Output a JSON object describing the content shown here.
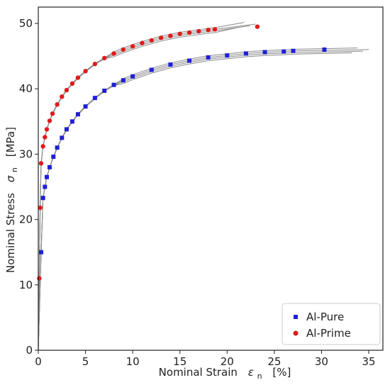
{
  "chart_data": {
    "type": "scatter",
    "title": "",
    "xlabel_text": "Nominal Strain",
    "xlabel_symbol": "ε",
    "xlabel_sub": "n",
    "xlabel_unit": "[%]",
    "ylabel_text": "Nominal Stress",
    "ylabel_symbol": "σ",
    "ylabel_sub": "n",
    "ylabel_unit": "[MPa]",
    "xlim": [
      0,
      36.5
    ],
    "ylim": [
      0,
      52.5
    ],
    "xticks": [
      0,
      5,
      10,
      15,
      20,
      25,
      30,
      35
    ],
    "yticks": [
      0,
      10,
      20,
      30,
      40,
      50
    ],
    "grid": false,
    "legend_position": "bottom-right",
    "series": [
      {
        "name": "Al-Pure",
        "marker": "square",
        "color": "#1f1fd6",
        "line_end": [
          35.0,
          46.0
        ],
        "x": [
          0.3,
          0.5,
          0.7,
          0.9,
          1.2,
          1.6,
          2.0,
          2.5,
          3.0,
          3.6,
          4.2,
          5.0,
          6.0,
          7.0,
          8.0,
          9.0,
          10.0,
          12.0,
          14.0,
          16.0,
          18.0,
          20.0,
          22.0,
          24.0,
          26.0,
          27.0,
          30.3
        ],
        "y": [
          15.0,
          23.3,
          25.0,
          26.5,
          28.0,
          29.6,
          31.0,
          32.5,
          33.8,
          35.0,
          36.1,
          37.3,
          38.6,
          39.7,
          40.6,
          41.3,
          41.9,
          42.9,
          43.7,
          44.3,
          44.8,
          45.1,
          45.4,
          45.6,
          45.7,
          45.8,
          46.0
        ]
      },
      {
        "name": "Al-Prime",
        "marker": "circle",
        "color": "#e01b1b",
        "line_end": [
          23.0,
          49.9
        ],
        "x": [
          0.1,
          0.2,
          0.3,
          0.5,
          0.7,
          0.9,
          1.2,
          1.5,
          2.0,
          2.5,
          3.0,
          3.6,
          4.2,
          5.0,
          6.0,
          7.0,
          8.0,
          9.0,
          10.0,
          11.0,
          12.0,
          13.0,
          14.0,
          15.0,
          16.0,
          17.0,
          18.0,
          18.7,
          23.2
        ],
        "y": [
          11.0,
          21.8,
          28.6,
          31.2,
          32.6,
          33.8,
          35.1,
          36.2,
          37.6,
          38.8,
          39.8,
          40.8,
          41.7,
          42.7,
          43.8,
          44.7,
          45.4,
          46.0,
          46.5,
          47.0,
          47.4,
          47.8,
          48.1,
          48.4,
          48.6,
          48.8,
          49.0,
          49.1,
          49.5
        ]
      }
    ]
  }
}
